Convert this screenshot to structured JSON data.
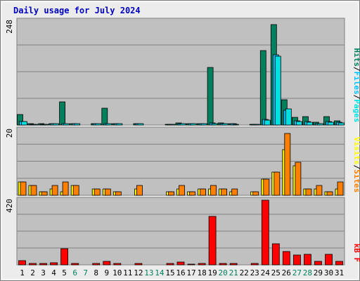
{
  "title": "Daily usage for July 2024",
  "colors": {
    "background": "#ececec",
    "plot_background": "#c0c0c0",
    "title_text": "#0000c0",
    "hits": "#00805c",
    "files": "#00c0ff",
    "pages": "#00e0e0",
    "visits": "#ffff00",
    "sites": "#ff8000",
    "kbytes": "#ff0000",
    "weekend_label": "#00805c",
    "weekday_label": "#000000"
  },
  "chart_data": [
    {
      "type": "bar",
      "panel": "hits-files-pages",
      "ymax_label": "248",
      "ylim": [
        0,
        248
      ],
      "legend": [
        "Pages",
        "Files",
        "Hits"
      ],
      "legend_placement": "right",
      "categories": [
        "1",
        "2",
        "3",
        "4",
        "5",
        "6",
        "7",
        "8",
        "9",
        "10",
        "11",
        "12",
        "13",
        "14",
        "15",
        "16",
        "17",
        "18",
        "19",
        "20",
        "21",
        "22",
        "23",
        "24",
        "25",
        "26",
        "27",
        "28",
        "29",
        "30",
        "31"
      ],
      "weekend_days": [
        "6",
        "7",
        "13",
        "14",
        "20",
        "21",
        "27",
        "28"
      ],
      "series": [
        {
          "name": "Hits",
          "color_key": "hits",
          "values": [
            25,
            3,
            3,
            4,
            55,
            4,
            0,
            4,
            40,
            3,
            0,
            4,
            0,
            0,
            2,
            5,
            4,
            4,
            138,
            5,
            4,
            0,
            2,
            177,
            240,
            60,
            18,
            20,
            6,
            20,
            10
          ]
        },
        {
          "name": "Files",
          "color_key": "files",
          "values": [
            9,
            2,
            2,
            3,
            3,
            3,
            0,
            3,
            3,
            3,
            0,
            3,
            0,
            0,
            2,
            4,
            3,
            3,
            5,
            3,
            3,
            0,
            1,
            14,
            168,
            36,
            10,
            8,
            3,
            8,
            6
          ]
        },
        {
          "name": "Pages",
          "color_key": "pages",
          "values": [
            8,
            2,
            2,
            3,
            3,
            3,
            0,
            3,
            3,
            3,
            0,
            3,
            0,
            0,
            1,
            3,
            3,
            3,
            4,
            3,
            2,
            0,
            1,
            12,
            165,
            38,
            9,
            7,
            3,
            7,
            5
          ]
        }
      ]
    },
    {
      "type": "bar",
      "panel": "visits-sites",
      "ymax_label": "20",
      "ylim": [
        0,
        20
      ],
      "legend": [
        "Sites",
        "Visits"
      ],
      "legend_placement": "right",
      "categories": [
        "1",
        "2",
        "3",
        "4",
        "5",
        "6",
        "7",
        "8",
        "9",
        "10",
        "11",
        "12",
        "13",
        "14",
        "15",
        "16",
        "17",
        "18",
        "19",
        "20",
        "21",
        "22",
        "23",
        "24",
        "25",
        "26",
        "27",
        "28",
        "29",
        "30",
        "31"
      ],
      "series": [
        {
          "name": "Visits",
          "color_key": "visits",
          "values": [
            4,
            3,
            1,
            2,
            1,
            3,
            0,
            2,
            2,
            1,
            0,
            2,
            0,
            0,
            1,
            2,
            1,
            2,
            2,
            2,
            1,
            0,
            1,
            5,
            7,
            14,
            9,
            2,
            2,
            1,
            2
          ]
        },
        {
          "name": "Sites",
          "color_key": "sites",
          "values": [
            4,
            3,
            1,
            3,
            4,
            3,
            0,
            2,
            2,
            1,
            0,
            3,
            0,
            0,
            1,
            3,
            1,
            2,
            3,
            2,
            2,
            0,
            1,
            5,
            7,
            19,
            10,
            2,
            3,
            1,
            4
          ]
        }
      ]
    },
    {
      "type": "bar",
      "panel": "kbytes",
      "ymax_label": "420",
      "ylim": [
        0,
        420
      ],
      "legend": [
        "kB F"
      ],
      "legend_placement": "right",
      "categories": [
        "1",
        "2",
        "3",
        "4",
        "5",
        "6",
        "7",
        "8",
        "9",
        "10",
        "11",
        "12",
        "13",
        "14",
        "15",
        "16",
        "17",
        "18",
        "19",
        "20",
        "21",
        "22",
        "23",
        "24",
        "25",
        "26",
        "27",
        "28",
        "29",
        "30",
        "31"
      ],
      "series": [
        {
          "name": "kB F",
          "color_key": "kbytes",
          "values": [
            28,
            10,
            10,
            15,
            105,
            10,
            0,
            10,
            22,
            10,
            0,
            10,
            0,
            0,
            8,
            18,
            5,
            10,
            315,
            10,
            10,
            0,
            10,
            420,
            135,
            85,
            65,
            68,
            25,
            70,
            25
          ]
        }
      ]
    }
  ]
}
